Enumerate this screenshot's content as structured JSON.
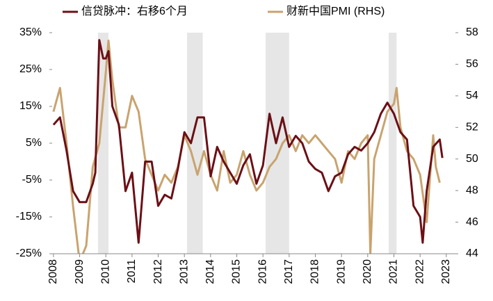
{
  "chart_data": {
    "type": "line",
    "series": [
      {
        "name": "信贷脉冲：右移6个月",
        "color": "#6b0f16",
        "axis": "y",
        "x": [
          2008.0,
          2008.25,
          2008.5,
          2008.75,
          2009.0,
          2009.25,
          2009.5,
          2009.6,
          2009.75,
          2009.9,
          2010.0,
          2010.1,
          2010.25,
          2010.5,
          2010.75,
          2011.0,
          2011.25,
          2011.5,
          2011.75,
          2012.0,
          2012.25,
          2012.5,
          2012.75,
          2013.0,
          2013.25,
          2013.5,
          2013.75,
          2014.0,
          2014.25,
          2014.5,
          2014.75,
          2015.0,
          2015.25,
          2015.5,
          2015.75,
          2016.0,
          2016.25,
          2016.5,
          2016.75,
          2017.0,
          2017.25,
          2017.5,
          2017.75,
          2018.0,
          2018.25,
          2018.5,
          2018.75,
          2019.0,
          2019.25,
          2019.5,
          2019.75,
          2020.0,
          2020.25,
          2020.5,
          2020.75,
          2021.0,
          2021.25,
          2021.5,
          2021.75,
          2022.0,
          2022.1,
          2022.25,
          2022.5,
          2022.75,
          2022.85
        ],
        "values": [
          10,
          12,
          3,
          -8,
          -11,
          -11,
          -6,
          -3,
          33,
          28,
          28,
          30,
          15,
          10,
          -8,
          -3,
          -22,
          0,
          0,
          -12,
          -9,
          -10,
          -2,
          8,
          5,
          12,
          12,
          -4,
          4,
          0,
          -3,
          -6,
          -1,
          2,
          -6,
          -1,
          13,
          5,
          12,
          4,
          7,
          5,
          0,
          -2,
          -3,
          -8,
          -4,
          -3,
          2,
          4,
          3,
          5,
          8,
          13,
          16,
          13,
          8,
          6,
          -12,
          -15,
          -22,
          -8,
          4,
          6,
          1
        ]
      },
      {
        "name": "财新中国PMI (RHS)",
        "color": "#c9a36e",
        "axis": "y2",
        "x": [
          2008.0,
          2008.25,
          2008.5,
          2008.75,
          2009.0,
          2009.25,
          2009.5,
          2009.75,
          2010.0,
          2010.1,
          2010.25,
          2010.5,
          2010.75,
          2011.0,
          2011.25,
          2011.5,
          2011.75,
          2012.0,
          2012.25,
          2012.5,
          2012.75,
          2013.0,
          2013.25,
          2013.5,
          2013.75,
          2014.0,
          2014.25,
          2014.5,
          2014.75,
          2015.0,
          2015.25,
          2015.5,
          2015.75,
          2016.0,
          2016.25,
          2016.5,
          2016.75,
          2017.0,
          2017.25,
          2017.5,
          2017.75,
          2018.0,
          2018.25,
          2018.5,
          2018.75,
          2019.0,
          2019.25,
          2019.5,
          2019.75,
          2020.0,
          2020.1,
          2020.25,
          2020.5,
          2020.75,
          2021.0,
          2021.1,
          2021.25,
          2021.5,
          2021.75,
          2022.0,
          2022.25,
          2022.5,
          2022.6,
          2022.75
        ],
        "values": [
          53,
          54.5,
          51,
          47,
          43.5,
          44.5,
          49.5,
          51,
          55.5,
          57.5,
          55,
          52,
          52,
          54,
          53,
          50,
          49,
          48,
          49,
          48.5,
          49.5,
          51.5,
          50.5,
          49,
          50.5,
          49,
          48,
          50.5,
          48.5,
          49,
          50.5,
          49,
          48,
          48.5,
          49.5,
          50,
          51,
          51.5,
          50.5,
          51.5,
          51,
          51.5,
          51,
          50.5,
          50,
          48.5,
          50.5,
          50,
          51,
          51.5,
          44,
          50,
          51.5,
          53,
          53.5,
          54.5,
          52,
          50.5,
          50,
          49,
          46,
          51.5,
          49.5,
          48.5
        ]
      }
    ],
    "xlim": [
      2007.95,
      2023.35
    ],
    "xticks": [
      2008,
      2009,
      2010,
      2011,
      2012,
      2013,
      2014,
      2015,
      2016,
      2017,
      2018,
      2019,
      2020,
      2021,
      2022,
      2023
    ],
    "ylim": [
      -25,
      35
    ],
    "yticks": [
      {
        "value": 35,
        "label": "35%"
      },
      {
        "value": 25,
        "label": "25%"
      },
      {
        "value": 15,
        "label": "15%"
      },
      {
        "value": 5,
        "label": "5%"
      },
      {
        "value": -5,
        "label": "-5%"
      },
      {
        "value": -15,
        "label": "-15%"
      },
      {
        "value": -25,
        "label": "-25%"
      }
    ],
    "y2lim": [
      44,
      58
    ],
    "y2ticks": [
      58,
      56,
      54,
      52,
      50,
      48,
      46,
      44
    ],
    "shaded_periods": [
      [
        2009.7,
        2010.1
      ],
      [
        2013.1,
        2013.7
      ],
      [
        2016.1,
        2017.0
      ],
      [
        2020.8,
        2021.1
      ]
    ],
    "shade_color": "#e6e6e6",
    "grid": false
  }
}
